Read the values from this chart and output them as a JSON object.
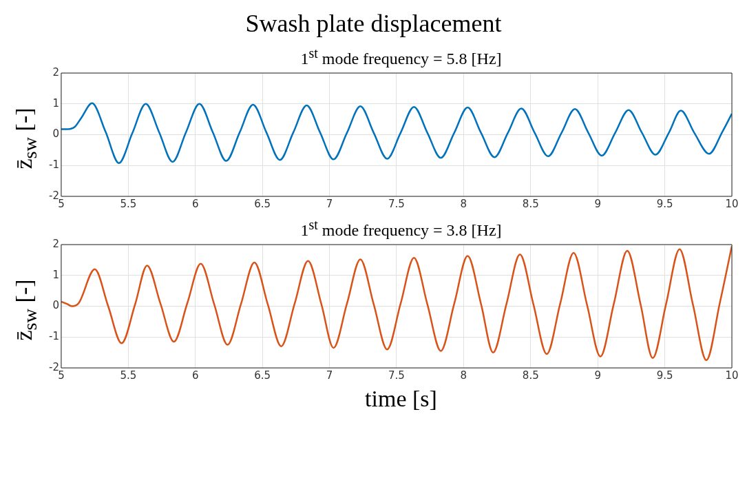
{
  "chart_data": [
    {
      "type": "line",
      "title": "Swash plate displacement",
      "subtitle": "1$^{st}$ mode frequency = 5.8 [Hz]",
      "ylabel": "z̄$_{sw}$  [-]",
      "xlim": [
        5,
        10
      ],
      "xticks": [
        5,
        5.5,
        6,
        6.5,
        7,
        7.5,
        8,
        8.5,
        9,
        9.5,
        10
      ],
      "ylim": [
        -2,
        2
      ],
      "yticks": [
        -2,
        -1,
        0,
        1,
        2
      ],
      "grid": true,
      "legend": false,
      "series": [
        {
          "color": "#0072bd",
          "x": [
            5,
            5.05,
            5.1,
            5.15,
            5.23,
            5.33,
            5.43,
            5.53,
            5.63,
            5.73,
            5.83,
            5.93,
            6.03,
            6.13,
            6.23,
            6.33,
            6.43,
            6.53,
            6.63,
            6.73,
            6.83,
            6.93,
            7.03,
            7.13,
            7.23,
            7.33,
            7.43,
            7.53,
            7.63,
            7.73,
            7.83,
            7.93,
            8.03,
            8.13,
            8.23,
            8.33,
            8.43,
            8.53,
            8.63,
            8.73,
            8.83,
            8.93,
            9.03,
            9.13,
            9.23,
            9.33,
            9.43,
            9.53,
            9.62,
            9.72,
            9.83,
            9.93,
            10
          ],
          "values": [
            0.18,
            0.18,
            0.25,
            0.55,
            1.02,
            0.1,
            -0.92,
            0.05,
            1.0,
            0.08,
            -0.88,
            0.08,
            1.0,
            0.08,
            -0.85,
            0.07,
            0.97,
            0.07,
            -0.82,
            0.07,
            0.95,
            0.07,
            -0.8,
            0.06,
            0.92,
            0.06,
            -0.78,
            0.06,
            0.9,
            0.06,
            -0.75,
            0.06,
            0.88,
            0.06,
            -0.73,
            0.06,
            0.85,
            0.06,
            -0.7,
            0.06,
            0.83,
            0.06,
            -0.68,
            0.06,
            0.8,
            0.06,
            -0.65,
            0.06,
            0.78,
            0.06,
            -0.62,
            0.1,
            0.68
          ]
        }
      ]
    },
    {
      "type": "line",
      "subtitle": "1$^{st}$ mode frequency = 3.8 [Hz]",
      "ylabel": "z̄$_{sw}$  [-]",
      "xlabel": "time [s]",
      "xlim": [
        5,
        10
      ],
      "xticks": [
        5,
        5.5,
        6,
        6.5,
        7,
        7.5,
        8,
        8.5,
        9,
        9.5,
        10
      ],
      "ylim": [
        -2,
        2
      ],
      "yticks": [
        -2,
        -1,
        0,
        1,
        2
      ],
      "grid": true,
      "legend": false,
      "series": [
        {
          "color": "#d95319",
          "x": [
            5,
            5.04,
            5.08,
            5.13,
            5.25,
            5.35,
            5.45,
            5.55,
            5.64,
            5.74,
            5.84,
            5.94,
            6.04,
            6.14,
            6.24,
            6.34,
            6.44,
            6.54,
            6.64,
            6.74,
            6.84,
            6.94,
            7.03,
            7.13,
            7.23,
            7.33,
            7.43,
            7.53,
            7.63,
            7.73,
            7.83,
            7.93,
            8.03,
            8.13,
            8.22,
            8.32,
            8.42,
            8.52,
            8.62,
            8.72,
            8.82,
            8.92,
            9.02,
            9.12,
            9.22,
            9.32,
            9.41,
            9.51,
            9.61,
            9.71,
            9.81,
            9.91,
            10
          ],
          "values": [
            0.15,
            0.08,
            0.0,
            0.1,
            1.2,
            0.0,
            -1.2,
            0.05,
            1.32,
            0.08,
            -1.15,
            0.1,
            1.38,
            0.07,
            -1.25,
            0.07,
            1.42,
            0.06,
            -1.3,
            0.08,
            1.47,
            0.06,
            -1.35,
            0.08,
            1.52,
            0.06,
            -1.4,
            0.08,
            1.57,
            0.06,
            -1.45,
            0.08,
            1.63,
            0.07,
            -1.5,
            0.08,
            1.68,
            0.07,
            -1.55,
            0.08,
            1.73,
            0.05,
            -1.63,
            0.08,
            1.8,
            0.05,
            -1.68,
            0.08,
            1.85,
            0.05,
            -1.75,
            0.1,
            1.95
          ]
        }
      ]
    }
  ]
}
